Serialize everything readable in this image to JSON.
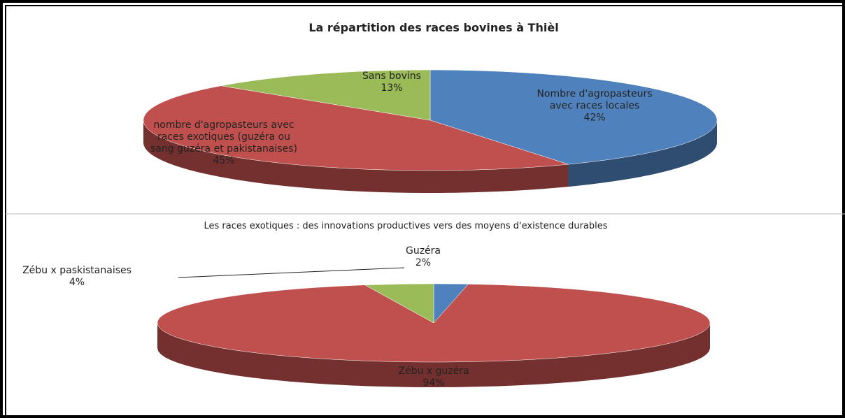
{
  "chart_data": [
    {
      "type": "pie",
      "title": "La répartition des races bovines à Thièl",
      "categories": [
        "Nombre d'agropasteurs avec races locales",
        "nombre d'agropasteurs avec races exotiques (guzéra ou sang guzéra et pakistanaises)",
        "Sans bovins"
      ],
      "values": [
        42,
        45,
        13
      ],
      "value_labels": [
        "42%",
        "45%",
        "13%"
      ],
      "colors": [
        "#4f81bd",
        "#c0504d",
        "#9bbb59"
      ]
    },
    {
      "type": "pie",
      "title": "Les races exotiques : des innovations productives vers des moyens d'existence durables",
      "categories": [
        "Guzéra",
        "Zébu x guzéra",
        "Zébu x paskistanaises"
      ],
      "values": [
        2,
        94,
        4
      ],
      "value_labels": [
        "2%",
        "94%",
        "4%"
      ],
      "colors": [
        "#4f81bd",
        "#c0504d",
        "#9bbb59"
      ]
    }
  ]
}
